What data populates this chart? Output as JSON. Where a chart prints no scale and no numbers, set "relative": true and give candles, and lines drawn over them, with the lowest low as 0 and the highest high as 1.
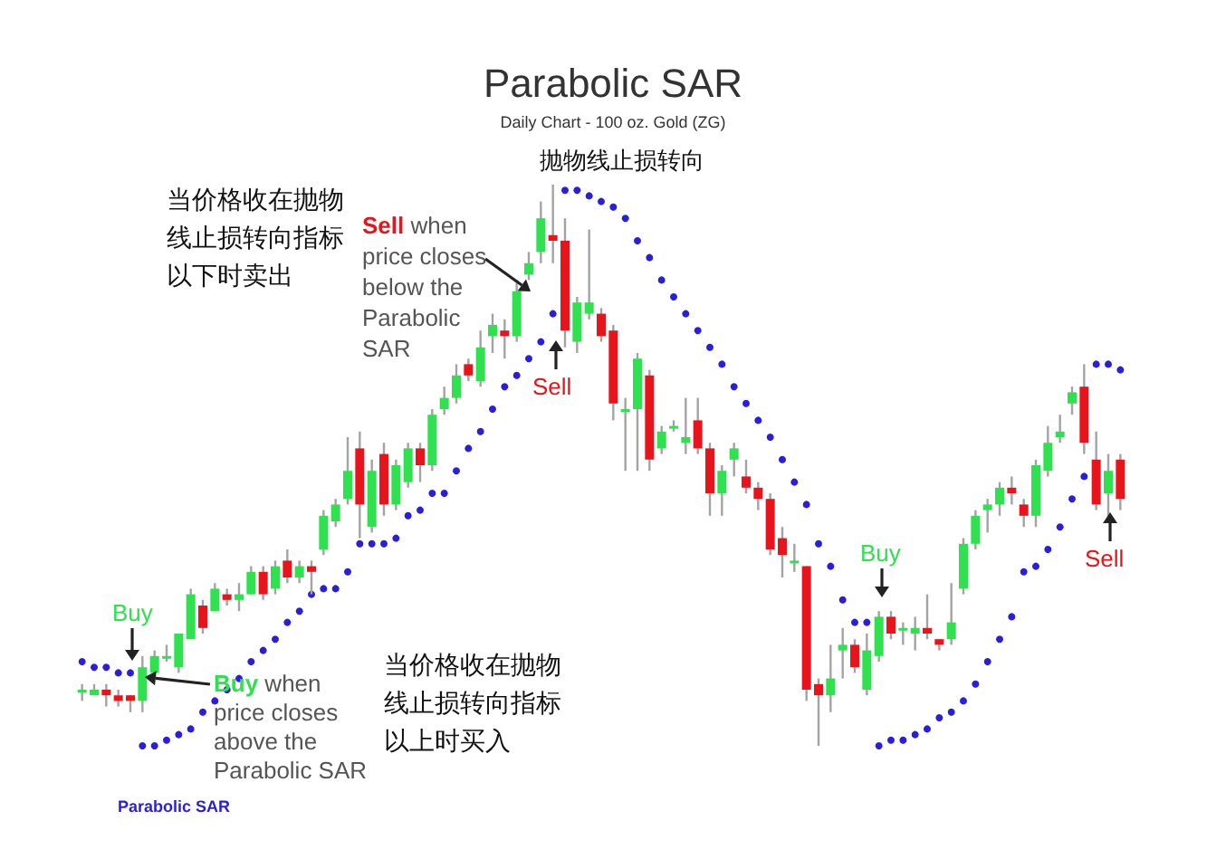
{
  "chart_data": {
    "type": "candlestick",
    "title": "Parabolic SAR",
    "subtitle": "Daily Chart - 100 oz. Gold (ZG)",
    "relative": true,
    "grid": false,
    "legend": "bottom left",
    "marker": "circle",
    "categories": [
      null,
      null,
      null,
      null,
      null,
      null,
      null,
      null,
      null,
      null,
      null,
      null,
      null,
      null,
      null,
      null,
      null,
      null,
      null,
      null,
      null,
      null,
      null,
      null,
      null,
      null,
      null,
      null,
      null,
      null,
      null,
      null,
      null,
      null,
      null,
      null,
      null,
      null,
      null,
      null,
      null,
      null,
      null,
      null,
      null,
      null,
      null,
      null,
      null,
      null,
      null,
      null,
      null,
      null,
      null,
      null,
      null,
      null,
      null,
      null,
      null,
      null,
      null,
      null,
      null,
      null,
      null,
      null,
      null,
      null,
      null,
      null,
      null,
      null,
      null,
      null,
      null,
      null,
      null,
      null,
      null,
      null,
      null,
      null,
      null,
      null,
      null
    ],
    "ohlc": [
      [
        0.1,
        0.11,
        0.08,
        0.1
      ],
      [
        0.09,
        0.11,
        0.09,
        0.1
      ],
      [
        0.1,
        0.11,
        0.07,
        0.09
      ],
      [
        0.09,
        0.1,
        0.07,
        0.08
      ],
      [
        0.09,
        0.09,
        0.06,
        0.08
      ],
      [
        0.08,
        0.16,
        0.06,
        0.14
      ],
      [
        0.13,
        0.17,
        0.12,
        0.16
      ],
      [
        0.16,
        0.18,
        0.15,
        0.16
      ],
      [
        0.14,
        0.2,
        0.13,
        0.2
      ],
      [
        0.19,
        0.28,
        0.19,
        0.27
      ],
      [
        0.25,
        0.26,
        0.2,
        0.21
      ],
      [
        0.24,
        0.29,
        0.24,
        0.28
      ],
      [
        0.27,
        0.28,
        0.25,
        0.26
      ],
      [
        0.26,
        0.29,
        0.24,
        0.27
      ],
      [
        0.27,
        0.32,
        0.27,
        0.31
      ],
      [
        0.31,
        0.32,
        0.26,
        0.27
      ],
      [
        0.28,
        0.33,
        0.27,
        0.32
      ],
      [
        0.33,
        0.35,
        0.29,
        0.3
      ],
      [
        0.3,
        0.33,
        0.29,
        0.32
      ],
      [
        0.32,
        0.33,
        0.27,
        0.31
      ],
      [
        0.35,
        0.42,
        0.34,
        0.41
      ],
      [
        0.4,
        0.44,
        0.39,
        0.43
      ],
      [
        0.44,
        0.55,
        0.43,
        0.49
      ],
      [
        0.53,
        0.56,
        0.37,
        0.43
      ],
      [
        0.39,
        0.51,
        0.38,
        0.49
      ],
      [
        0.52,
        0.54,
        0.41,
        0.43
      ],
      [
        0.43,
        0.51,
        0.42,
        0.5
      ],
      [
        0.47,
        0.54,
        0.46,
        0.53
      ],
      [
        0.53,
        0.54,
        0.47,
        0.5
      ],
      [
        0.5,
        0.6,
        0.49,
        0.59
      ],
      [
        0.6,
        0.64,
        0.59,
        0.62
      ],
      [
        0.62,
        0.68,
        0.61,
        0.66
      ],
      [
        0.68,
        0.69,
        0.65,
        0.66
      ],
      [
        0.65,
        0.74,
        0.64,
        0.71
      ],
      [
        0.73,
        0.77,
        0.7,
        0.75
      ],
      [
        0.74,
        0.76,
        0.69,
        0.73
      ],
      [
        0.73,
        0.83,
        0.72,
        0.81
      ],
      [
        0.84,
        0.88,
        0.83,
        0.86
      ],
      [
        0.88,
        0.97,
        0.86,
        0.94
      ],
      [
        0.91,
        1.0,
        0.86,
        0.9
      ],
      [
        0.9,
        0.94,
        0.71,
        0.74
      ],
      [
        0.72,
        0.8,
        0.7,
        0.79
      ],
      [
        0.77,
        0.92,
        0.76,
        0.79
      ],
      [
        0.77,
        0.78,
        0.72,
        0.73
      ],
      [
        0.74,
        0.75,
        0.58,
        0.61
      ],
      [
        0.6,
        0.62,
        0.49,
        0.6
      ],
      [
        0.6,
        0.7,
        0.49,
        0.69
      ],
      [
        0.66,
        0.67,
        0.49,
        0.51
      ],
      [
        0.53,
        0.57,
        0.52,
        0.56
      ],
      [
        0.57,
        0.58,
        0.56,
        0.57
      ],
      [
        0.54,
        0.62,
        0.52,
        0.55
      ],
      [
        0.58,
        0.62,
        0.52,
        0.53
      ],
      [
        0.53,
        0.54,
        0.41,
        0.45
      ],
      [
        0.45,
        0.5,
        0.41,
        0.49
      ],
      [
        0.51,
        0.54,
        0.48,
        0.53
      ],
      [
        0.48,
        0.51,
        0.45,
        0.46
      ],
      [
        0.46,
        0.47,
        0.42,
        0.44
      ],
      [
        0.44,
        0.45,
        0.34,
        0.35
      ],
      [
        0.37,
        0.39,
        0.3,
        0.34
      ],
      [
        0.33,
        0.36,
        0.31,
        0.33
      ],
      [
        0.32,
        0.32,
        0.08,
        0.1
      ],
      [
        0.11,
        0.12,
        0.0,
        0.09
      ],
      [
        0.09,
        0.18,
        0.06,
        0.12
      ],
      [
        0.17,
        0.21,
        0.12,
        0.18
      ],
      [
        0.18,
        0.19,
        0.13,
        0.14
      ],
      [
        0.1,
        0.2,
        0.09,
        0.17
      ],
      [
        0.16,
        0.24,
        0.15,
        0.23
      ],
      [
        0.23,
        0.24,
        0.19,
        0.2
      ],
      [
        0.21,
        0.22,
        0.18,
        0.21
      ],
      [
        0.2,
        0.23,
        0.17,
        0.21
      ],
      [
        0.21,
        0.27,
        0.19,
        0.2
      ],
      [
        0.19,
        0.19,
        0.17,
        0.18
      ],
      [
        0.19,
        0.29,
        0.18,
        0.22
      ],
      [
        0.28,
        0.37,
        0.27,
        0.36
      ],
      [
        0.36,
        0.42,
        0.35,
        0.41
      ],
      [
        0.42,
        0.44,
        0.38,
        0.43
      ],
      [
        0.43,
        0.47,
        0.41,
        0.46
      ],
      [
        0.46,
        0.48,
        0.43,
        0.45
      ],
      [
        0.43,
        0.44,
        0.39,
        0.41
      ],
      [
        0.41,
        0.51,
        0.39,
        0.5
      ],
      [
        0.49,
        0.57,
        0.48,
        0.54
      ],
      [
        0.55,
        0.59,
        0.54,
        0.56
      ],
      [
        0.61,
        0.64,
        0.59,
        0.63
      ],
      [
        0.64,
        0.68,
        0.52,
        0.54
      ],
      [
        0.51,
        0.56,
        0.42,
        0.43
      ],
      [
        0.45,
        0.52,
        0.4,
        0.49
      ],
      [
        0.51,
        0.52,
        0.42,
        0.44
      ]
    ],
    "series": [
      {
        "name": "Parabolic SAR",
        "type": "scatter",
        "color": "#2a1fd8",
        "values": [
          0.15,
          0.14,
          0.14,
          0.13,
          0.13,
          0.0,
          0.0,
          0.01,
          0.02,
          0.03,
          0.06,
          0.08,
          0.1,
          0.12,
          0.15,
          0.17,
          0.19,
          0.22,
          0.24,
          0.27,
          0.28,
          0.28,
          0.31,
          0.36,
          0.36,
          0.36,
          0.37,
          0.41,
          0.42,
          0.45,
          0.45,
          0.49,
          0.53,
          0.56,
          0.6,
          0.64,
          0.66,
          0.69,
          0.72,
          0.77,
          0.99,
          0.99,
          0.98,
          0.97,
          0.96,
          0.94,
          0.9,
          0.87,
          0.83,
          0.8,
          0.77,
          0.74,
          0.71,
          0.68,
          0.64,
          0.61,
          0.58,
          0.55,
          0.51,
          0.47,
          0.43,
          0.36,
          0.32,
          0.26,
          0.22,
          0.22,
          0.0,
          0.01,
          0.01,
          0.02,
          0.03,
          0.05,
          0.06,
          0.08,
          0.11,
          0.15,
          0.19,
          0.23,
          0.31,
          0.32,
          0.35,
          0.39,
          0.44,
          0.48,
          0.68,
          0.68,
          0.67
        ]
      }
    ],
    "annotations": [
      "抛物线止损转向",
      "当价格收在抛物线止损转向指标以下时卖出",
      "Sell when price closes below the Parabolic SAR",
      "Sell",
      "Buy",
      "Buy when price closes above the Parabolic SAR",
      "当价格收在抛物线止损转向指标以上时买入",
      "Buy",
      "Sell"
    ]
  }
}
